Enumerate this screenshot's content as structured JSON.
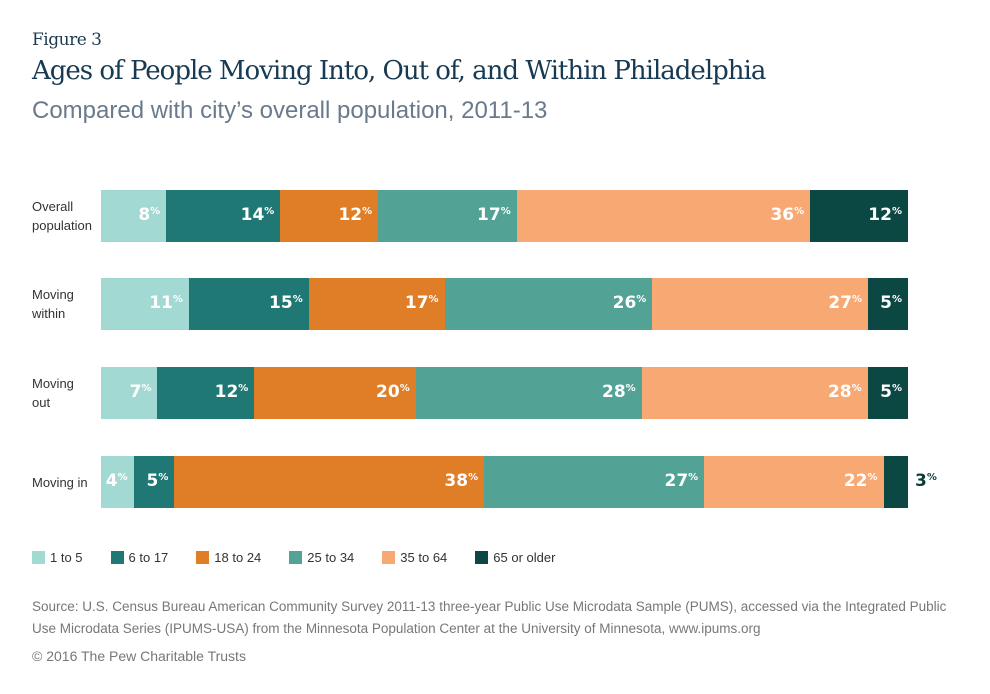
{
  "figure_label": "Figure 3",
  "title": "Ages of People Moving Into, Out of, and Within Philadelphia",
  "subtitle": "Compared with city’s overall population, 2011-13",
  "source": "Source: U.S. Census Bureau American Community Survey 2011-13 three-year Public Use Microdata Sample (PUMS), accessed via the Integrated Public Use Microdata Series (IPUMS-USA) from the Minnesota Population Center at the University of Minnesota, www.ipums.org",
  "copyright": "© 2016 The Pew Charitable Trusts",
  "chart_data": {
    "type": "bar",
    "orientation": "horizontal",
    "stacked": true,
    "title": "Ages of People Moving Into, Out of, and Within Philadelphia",
    "subtitle": "Compared with city’s overall population, 2011-13",
    "xlabel": "",
    "ylabel": "",
    "xlim": [
      0,
      100
    ],
    "unit": "%",
    "grid": false,
    "legend_position": "bottom-left",
    "categories": [
      "Overall population",
      "Moving within",
      "Moving out",
      "Moving in"
    ],
    "category_lines": [
      [
        "Overall",
        "population"
      ],
      [
        "Moving",
        "within"
      ],
      [
        "Moving",
        "out"
      ],
      [
        "Moving in"
      ]
    ],
    "series": [
      {
        "name": "1 to 5",
        "color": "#a3d9d3",
        "values": [
          8,
          11,
          7,
          4
        ]
      },
      {
        "name": "6 to 17",
        "color": "#1f7873",
        "values": [
          14,
          15,
          12,
          5
        ]
      },
      {
        "name": "18 to 24",
        "color": "#e07d27",
        "values": [
          12,
          17,
          20,
          38
        ]
      },
      {
        "name": "25 to 34",
        "color": "#52a395",
        "values": [
          17,
          26,
          28,
          27
        ]
      },
      {
        "name": "35 to 64",
        "color": "#f8a973",
        "values": [
          36,
          27,
          28,
          22
        ]
      },
      {
        "name": "65 or older",
        "color": "#0b4844",
        "values": [
          12,
          5,
          5,
          3
        ]
      }
    ],
    "outside_label_color": "#0b3b38"
  }
}
